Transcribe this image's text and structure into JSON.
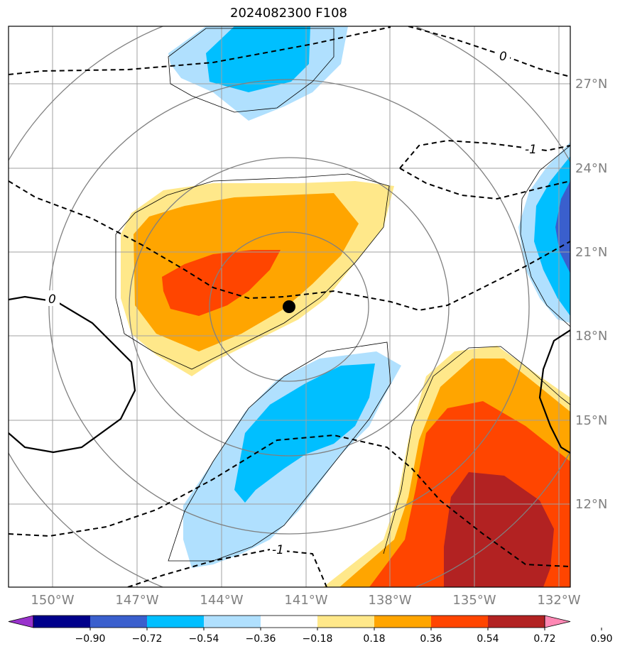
{
  "title": "2024082300 F108",
  "map": {
    "lon_ticks": [
      "150°W",
      "147°W",
      "144°W",
      "141°W",
      "138°W",
      "135°W",
      "132°W"
    ],
    "lat_ticks": [
      "27°N",
      "24°N",
      "21°N",
      "18°N",
      "15°N",
      "12°N"
    ],
    "contour_labels": [
      "0",
      "-1",
      "0",
      "-1"
    ],
    "center_marker": "storm-center"
  },
  "colorbar": {
    "levels": [
      "−0.90",
      "−0.72",
      "−0.54",
      "−0.36",
      "−0.18",
      "0.18",
      "0.36",
      "0.54",
      "0.72",
      "0.90"
    ],
    "colors": [
      "#9932cc",
      "#00008b",
      "#3a5fcd",
      "#00bfff",
      "#b0e0fe",
      "#ffffff",
      "#ffe88a",
      "#ffa500",
      "#ff4500",
      "#b22222",
      "#ff88b4"
    ]
  }
}
